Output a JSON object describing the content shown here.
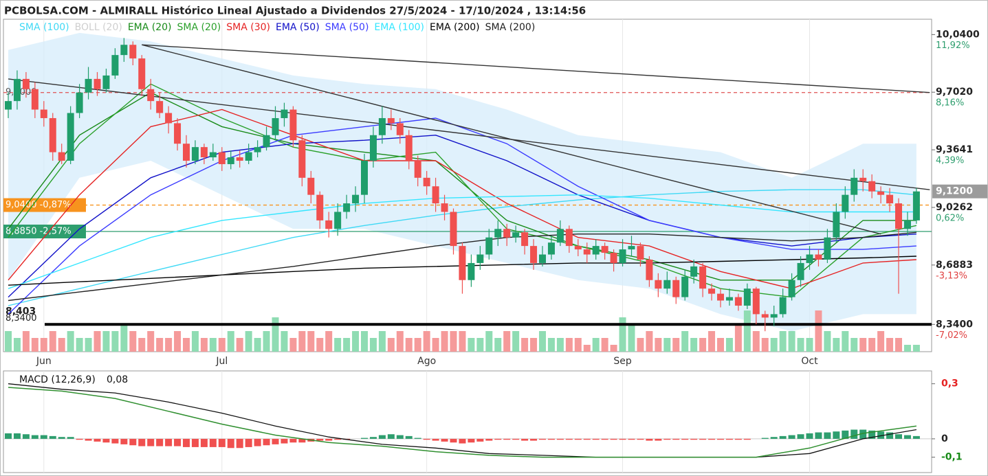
{
  "chart_data": {
    "type": "candlestick",
    "title": "PCBOLSA.COM - ALMIRALL Histórico Lineal Ajustado a Dividendos 27/5/2024 - 17/10/2024 , 13:14:56",
    "categories": [
      null,
      null,
      null,
      null,
      "Jun",
      null,
      null,
      null,
      null,
      null,
      null,
      null,
      null,
      null,
      null,
      null,
      null,
      null,
      null,
      null,
      null,
      null,
      null,
      null,
      "Jul",
      null,
      null,
      null,
      null,
      null,
      null,
      null,
      null,
      null,
      null,
      null,
      null,
      null,
      null,
      null,
      null,
      null,
      null,
      null,
      null,
      null,
      null,
      "Ago",
      null,
      null,
      null,
      null,
      null,
      null,
      null,
      null,
      null,
      null,
      null,
      null,
      null,
      null,
      null,
      null,
      null,
      null,
      null,
      null,
      null,
      "Sep",
      null,
      null,
      null,
      null,
      null,
      null,
      null,
      null,
      null,
      null,
      null,
      null,
      null,
      null,
      null,
      null,
      null,
      null,
      null,
      null,
      "Oct",
      null,
      null,
      null,
      null,
      null,
      null,
      null,
      null,
      null,
      null,
      null,
      null
    ],
    "ohlc": [
      [
        9.6,
        9.7,
        9.55,
        9.65
      ],
      [
        9.65,
        9.83,
        9.6,
        9.78
      ],
      [
        9.78,
        9.82,
        9.67,
        9.72
      ],
      [
        9.72,
        9.76,
        9.55,
        9.6
      ],
      [
        9.6,
        9.65,
        9.5,
        9.55
      ],
      [
        9.55,
        9.58,
        9.3,
        9.35
      ],
      [
        9.35,
        9.4,
        9.28,
        9.3
      ],
      [
        9.3,
        9.62,
        9.28,
        9.58
      ],
      [
        9.58,
        9.75,
        9.55,
        9.7
      ],
      [
        9.7,
        9.85,
        9.66,
        9.78
      ],
      [
        9.78,
        9.82,
        9.68,
        9.72
      ],
      [
        9.72,
        9.84,
        9.7,
        9.8
      ],
      [
        9.8,
        9.96,
        9.78,
        9.92
      ],
      [
        9.92,
        10.02,
        9.88,
        9.98
      ],
      [
        9.98,
        10.0,
        9.86,
        9.9
      ],
      [
        9.9,
        9.92,
        9.68,
        9.72
      ],
      [
        9.72,
        9.78,
        9.6,
        9.65
      ],
      [
        9.65,
        9.7,
        9.55,
        9.58
      ],
      [
        9.58,
        9.62,
        9.46,
        9.52
      ],
      [
        9.52,
        9.55,
        9.36,
        9.4
      ],
      [
        9.4,
        9.45,
        9.26,
        9.3
      ],
      [
        9.3,
        9.42,
        9.28,
        9.38
      ],
      [
        9.38,
        9.4,
        9.28,
        9.32
      ],
      [
        9.32,
        9.4,
        9.3,
        9.35
      ],
      [
        9.35,
        9.38,
        9.24,
        9.28
      ],
      [
        9.28,
        9.36,
        9.25,
        9.32
      ],
      [
        9.32,
        9.36,
        9.26,
        9.3
      ],
      [
        9.3,
        9.4,
        9.28,
        9.35
      ],
      [
        9.35,
        9.42,
        9.32,
        9.38
      ],
      [
        9.38,
        9.5,
        9.36,
        9.45
      ],
      [
        9.45,
        9.62,
        9.42,
        9.55
      ],
      [
        9.55,
        9.64,
        9.5,
        9.6
      ],
      [
        9.6,
        9.62,
        9.38,
        9.42
      ],
      [
        9.42,
        9.45,
        9.15,
        9.2
      ],
      [
        9.2,
        9.24,
        9.05,
        9.1
      ],
      [
        9.1,
        9.12,
        8.9,
        8.95
      ],
      [
        8.95,
        9.0,
        8.85,
        8.9
      ],
      [
        8.9,
        9.05,
        8.86,
        9.0
      ],
      [
        9.0,
        9.1,
        8.96,
        9.05
      ],
      [
        9.05,
        9.15,
        9.0,
        9.1
      ],
      [
        9.1,
        9.34,
        9.05,
        9.3
      ],
      [
        9.3,
        9.5,
        9.26,
        9.45
      ],
      [
        9.45,
        9.62,
        9.4,
        9.55
      ],
      [
        9.55,
        9.6,
        9.48,
        9.52
      ],
      [
        9.52,
        9.55,
        9.4,
        9.45
      ],
      [
        9.45,
        9.48,
        9.25,
        9.3
      ],
      [
        9.3,
        9.33,
        9.15,
        9.2
      ],
      [
        9.2,
        9.24,
        9.1,
        9.15
      ],
      [
        9.15,
        9.2,
        9.0,
        9.05
      ],
      [
        9.05,
        9.1,
        8.95,
        9.0
      ],
      [
        9.0,
        9.02,
        8.75,
        8.8
      ],
      [
        8.8,
        8.82,
        8.52,
        8.6
      ],
      [
        8.6,
        8.75,
        8.56,
        8.7
      ],
      [
        8.7,
        8.8,
        8.66,
        8.75
      ],
      [
        8.75,
        8.9,
        8.72,
        8.85
      ],
      [
        8.85,
        8.95,
        8.8,
        8.9
      ],
      [
        8.9,
        8.93,
        8.8,
        8.85
      ],
      [
        8.85,
        8.92,
        8.82,
        8.88
      ],
      [
        8.88,
        8.9,
        8.75,
        8.8
      ],
      [
        8.8,
        8.84,
        8.66,
        8.7
      ],
      [
        8.7,
        8.8,
        8.68,
        8.75
      ],
      [
        8.75,
        8.86,
        8.72,
        8.82
      ],
      [
        8.82,
        8.95,
        8.8,
        8.9
      ],
      [
        8.9,
        8.92,
        8.76,
        8.8
      ],
      [
        8.8,
        8.84,
        8.74,
        8.78
      ],
      [
        8.78,
        8.82,
        8.7,
        8.75
      ],
      [
        8.75,
        8.84,
        8.72,
        8.8
      ],
      [
        8.8,
        8.82,
        8.72,
        8.76
      ],
      [
        8.76,
        8.78,
        8.65,
        8.7
      ],
      [
        8.7,
        8.84,
        8.68,
        8.78
      ],
      [
        8.78,
        8.86,
        8.74,
        8.8
      ],
      [
        8.8,
        8.82,
        8.68,
        8.72
      ],
      [
        8.72,
        8.74,
        8.56,
        8.6
      ],
      [
        8.6,
        8.64,
        8.5,
        8.55
      ],
      [
        8.55,
        8.65,
        8.52,
        8.6
      ],
      [
        8.6,
        8.62,
        8.46,
        8.5
      ],
      [
        8.5,
        8.66,
        8.48,
        8.62
      ],
      [
        8.62,
        8.72,
        8.58,
        8.68
      ],
      [
        8.68,
        8.7,
        8.5,
        8.55
      ],
      [
        8.55,
        8.58,
        8.48,
        8.52
      ],
      [
        8.52,
        8.55,
        8.44,
        8.48
      ],
      [
        8.48,
        8.55,
        8.45,
        8.5
      ],
      [
        8.5,
        8.52,
        8.42,
        8.45
      ],
      [
        8.45,
        8.58,
        8.43,
        8.55
      ],
      [
        8.55,
        8.56,
        8.34,
        8.4
      ],
      [
        8.4,
        8.42,
        8.3,
        8.38
      ],
      [
        8.38,
        8.45,
        8.33,
        8.4
      ],
      [
        8.4,
        8.55,
        8.38,
        8.5
      ],
      [
        8.5,
        8.64,
        8.48,
        8.6
      ],
      [
        8.6,
        8.74,
        8.56,
        8.7
      ],
      [
        8.7,
        8.8,
        8.66,
        8.75
      ],
      [
        8.75,
        8.78,
        8.68,
        8.72
      ],
      [
        8.72,
        8.9,
        8.7,
        8.85
      ],
      [
        8.85,
        9.05,
        8.82,
        9.0
      ],
      [
        9.0,
        9.15,
        8.96,
        9.1
      ],
      [
        9.1,
        9.25,
        9.06,
        9.2
      ],
      [
        9.2,
        9.25,
        9.12,
        9.18
      ],
      [
        9.18,
        9.22,
        9.08,
        9.12
      ],
      [
        9.12,
        9.15,
        9.05,
        9.1
      ],
      [
        9.1,
        9.14,
        9.0,
        9.05
      ],
      [
        9.05,
        9.08,
        8.52,
        8.9
      ],
      [
        8.9,
        9.0,
        8.86,
        8.95
      ],
      [
        8.95,
        9.14,
        8.93,
        9.12
      ]
    ],
    "up_color": "#1f9e6b",
    "down_color": "#f0504f",
    "volume": [
      3,
      2,
      3,
      2,
      2,
      3,
      2,
      3,
      2,
      2,
      3,
      3,
      3,
      4,
      3,
      2,
      3,
      2,
      2,
      3,
      2,
      3,
      2,
      2,
      2,
      3,
      2,
      3,
      2,
      3,
      5,
      3,
      2,
      3,
      3,
      2,
      3,
      2,
      2,
      3,
      3,
      2,
      3,
      2,
      3,
      2,
      2,
      3,
      2,
      3,
      3,
      3,
      2,
      2,
      3,
      2,
      3,
      3,
      2,
      2,
      3,
      2,
      2,
      2,
      2,
      1,
      2,
      2,
      1,
      5,
      4,
      2,
      3,
      2,
      2,
      2,
      3,
      2,
      2,
      3,
      2,
      2,
      4,
      6,
      3,
      2,
      2,
      3,
      3,
      2,
      2,
      6,
      3,
      2,
      3,
      2,
      2,
      2,
      3,
      2,
      2,
      1,
      1
    ],
    "volume_lim": [
      0,
      8
    ],
    "ylim": [
      8.18,
      10.13
    ],
    "yticks": [
      {
        "value": 10.04,
        "label": "10,0400",
        "pct": "11,92%"
      },
      {
        "value": 9.702,
        "label": "9,7020",
        "pct": "8,16%"
      },
      {
        "value": 9.3641,
        "label": "9,3641",
        "pct": "4,39%"
      },
      {
        "value": 9.0262,
        "label": "9,0262",
        "pct": "0,62%"
      },
      {
        "value": 8.6883,
        "label": "8,6883",
        "pct": "-3,13%"
      },
      {
        "value": 8.34,
        "label": "8,3400",
        "pct": "-7,02%"
      }
    ],
    "last_price": {
      "value": 9.12,
      "label": "9,1200"
    },
    "levels": [
      {
        "value": 9.7,
        "label": "9,7000",
        "color": "#e05050",
        "line": "dashed"
      },
      {
        "value": 9.04,
        "label": "9,0400 -0,87%",
        "color": "#f7931e",
        "line": "dashed",
        "box": true
      },
      {
        "value": 8.885,
        "label": "8,8850 -2,57%",
        "color": "#2e9e6e",
        "line": "solid",
        "box": true
      },
      {
        "value": 8.403,
        "label": "8,403"
      },
      {
        "value": 8.34,
        "label": "8,3400",
        "color": "#000000",
        "line": "thick"
      }
    ],
    "trendlines": [
      {
        "x": [
          15,
          103.5
        ],
        "y": [
          9.98,
          9.7
        ]
      },
      {
        "x": [
          0,
          103.5
        ],
        "y": [
          9.78,
          9.13
        ]
      },
      {
        "x": [
          15,
          98
        ],
        "y": [
          9.98,
          8.87
        ]
      }
    ],
    "indicator_x": [
      0,
      8,
      16,
      24,
      32,
      40,
      48,
      56,
      64,
      72,
      80,
      88,
      96,
      102
    ],
    "indicators": [
      {
        "name": "SMA (100)",
        "color": "#3fd9f5",
        "values": [
          8.45,
          8.55,
          8.65,
          8.75,
          8.85,
          8.92,
          8.98,
          9.03,
          9.07,
          9.1,
          9.12,
          9.13,
          9.13,
          9.1
        ]
      },
      {
        "name": "BOLL (20)",
        "color": "#cfcfcf",
        "band": "#d6ecfb",
        "upper": [
          9.95,
          10.05,
          10.0,
          9.9,
          9.8,
          9.75,
          9.72,
          9.6,
          9.45,
          9.4,
          9.35,
          9.2,
          9.4,
          9.4
        ],
        "lower": [
          8.6,
          9.2,
          9.3,
          9.1,
          8.9,
          8.9,
          8.8,
          8.7,
          8.6,
          8.55,
          8.4,
          8.3,
          8.4,
          8.4
        ]
      },
      {
        "name": "EMA (20)",
        "color": "#178a17",
        "values": [
          8.9,
          9.45,
          9.7,
          9.5,
          9.4,
          9.35,
          9.3,
          8.95,
          8.8,
          8.72,
          8.6,
          8.6,
          8.95,
          8.95
        ]
      },
      {
        "name": "SMA (20)",
        "color": "#2aa02a",
        "values": [
          8.85,
          9.4,
          9.75,
          9.55,
          9.38,
          9.3,
          9.35,
          8.9,
          8.8,
          8.7,
          8.55,
          8.5,
          8.85,
          8.92
        ]
      },
      {
        "name": "SMA (30)",
        "color": "#e52222",
        "values": [
          8.6,
          9.1,
          9.5,
          9.6,
          9.45,
          9.3,
          9.3,
          9.05,
          8.85,
          8.8,
          8.65,
          8.55,
          8.7,
          8.72
        ]
      },
      {
        "name": "EMA (50)",
        "color": "#1010c8",
        "values": [
          8.5,
          8.9,
          9.2,
          9.35,
          9.4,
          9.42,
          9.45,
          9.3,
          9.1,
          8.95,
          8.85,
          8.8,
          8.85,
          8.87
        ]
      },
      {
        "name": "SMA (50)",
        "color": "#3a3aff",
        "values": [
          8.4,
          8.8,
          9.1,
          9.3,
          9.45,
          9.5,
          9.55,
          9.4,
          9.15,
          8.95,
          8.85,
          8.78,
          8.78,
          8.8
        ]
      },
      {
        "name": "EMA (100)",
        "color": "#33e6ff",
        "values": [
          8.55,
          8.7,
          8.85,
          8.95,
          9.0,
          9.05,
          9.08,
          9.09,
          9.1,
          9.08,
          9.04,
          9.0,
          9.0,
          9.0
        ]
      },
      {
        "name": "EMA (200)",
        "color": "#000000",
        "values": [
          8.57,
          8.59,
          8.61,
          8.63,
          8.65,
          8.67,
          8.68,
          8.69,
          8.7,
          8.7,
          8.71,
          8.72,
          8.73,
          8.74
        ]
      },
      {
        "name": "SMA (200)",
        "color": "#222222",
        "values": [
          8.48,
          8.53,
          8.58,
          8.63,
          8.68,
          8.74,
          8.8,
          8.85,
          8.87,
          8.87,
          8.85,
          8.83,
          8.85,
          8.88
        ]
      }
    ],
    "macd": {
      "label": "MACD (12,26,9)",
      "current": {
        "value": 0.08,
        "label": "0,08"
      },
      "ylim": [
        -0.18,
        0.34
      ],
      "yticks": [
        {
          "value": 0.3,
          "label": "0,3",
          "color": "#e52222"
        },
        0,
        {
          "value": -0.1,
          "label": "-0,1",
          "color": "#178a17"
        }
      ],
      "x": [
        0,
        6,
        12,
        18,
        24,
        30,
        36,
        42,
        48,
        54,
        60,
        66,
        72,
        78,
        84,
        90,
        96,
        102
      ],
      "line": [
        0.28,
        0.26,
        0.22,
        0.15,
        0.08,
        0.02,
        -0.02,
        -0.04,
        -0.07,
        -0.09,
        -0.1,
        -0.1,
        -0.1,
        -0.1,
        -0.1,
        -0.05,
        0.03,
        0.07
      ],
      "signal": [
        0.3,
        0.27,
        0.25,
        0.2,
        0.14,
        0.07,
        0.01,
        -0.03,
        -0.05,
        -0.08,
        -0.09,
        -0.1,
        -0.1,
        -0.1,
        -0.1,
        -0.08,
        0.0,
        0.05
      ],
      "line_color": "#2f8f2f",
      "signal_color": "#111111",
      "histogram": [
        0.03,
        0.03,
        0.025,
        0.02,
        0.02,
        0.015,
        0.01,
        0.01,
        -0.005,
        -0.01,
        -0.015,
        -0.02,
        -0.025,
        -0.03,
        -0.035,
        -0.04,
        -0.04,
        -0.04,
        -0.04,
        -0.04,
        -0.045,
        -0.045,
        -0.045,
        -0.045,
        -0.045,
        -0.05,
        -0.05,
        -0.045,
        -0.04,
        -0.035,
        -0.03,
        -0.025,
        -0.02,
        -0.02,
        -0.015,
        -0.01,
        -0.01,
        -0.005,
        -0.005,
        0,
        0.005,
        0.01,
        0.02,
        0.025,
        0.02,
        0.015,
        0.005,
        -0.005,
        -0.01,
        -0.015,
        -0.02,
        -0.025,
        -0.02,
        -0.015,
        -0.01,
        -0.005,
        -0.005,
        -0.005,
        -0.01,
        -0.01,
        -0.005,
        -0.005,
        -0.005,
        -0.005,
        -0.005,
        -0.005,
        -0.005,
        -0.005,
        -0.005,
        -0.005,
        -0.005,
        -0.005,
        -0.01,
        -0.01,
        -0.005,
        -0.005,
        -0.005,
        -0.005,
        -0.005,
        -0.005,
        -0.005,
        -0.005,
        -0.005,
        -0.005,
        0,
        0.005,
        0.01,
        0.015,
        0.02,
        0.025,
        0.03,
        0.035,
        0.035,
        0.04,
        0.045,
        0.05,
        0.05,
        0.045,
        0.04,
        0.035,
        0.025,
        0.02,
        0.015
      ]
    }
  }
}
